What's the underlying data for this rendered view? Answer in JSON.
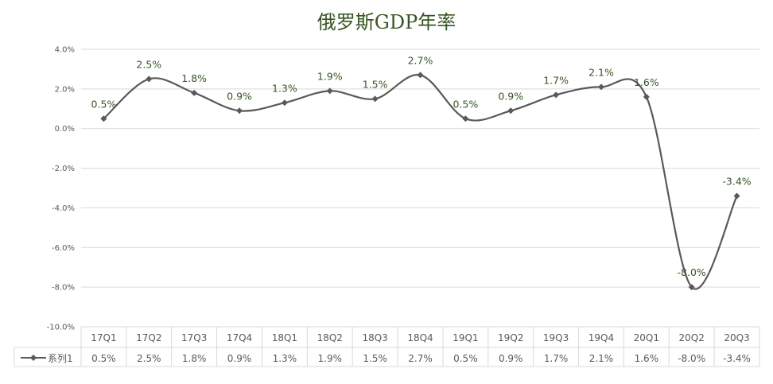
{
  "chart_data": {
    "type": "line",
    "title": "俄罗斯GDP年率",
    "categories": [
      "17Q1",
      "17Q2",
      "17Q3",
      "17Q4",
      "18Q1",
      "18Q2",
      "18Q3",
      "18Q4",
      "19Q1",
      "19Q2",
      "19Q3",
      "19Q4",
      "20Q1",
      "20Q2",
      "20Q3"
    ],
    "series": [
      {
        "name": "系列1",
        "values": [
          0.5,
          2.5,
          1.8,
          0.9,
          1.3,
          1.9,
          1.5,
          2.7,
          0.5,
          0.9,
          1.7,
          2.1,
          1.6,
          -8.0,
          -3.4
        ],
        "labels": [
          "0.5%",
          "2.5%",
          "1.8%",
          "0.9%",
          "1.3%",
          "1.9%",
          "1.5%",
          "2.7%",
          "0.5%",
          "0.9%",
          "1.7%",
          "2.1%",
          "1.6%",
          "-8.0%",
          "-3.4%"
        ]
      }
    ],
    "ylim": [
      -10,
      4
    ],
    "yticks": [
      4,
      2,
      0,
      -2,
      -4,
      -6,
      -8,
      -10
    ],
    "ytick_labels": [
      "4.0%",
      "2.0%",
      "0.0%",
      "-2.0%",
      "-4.0%",
      "-6.0%",
      "-8.0%",
      "-10.0%"
    ],
    "smooth": true,
    "grid": true,
    "data_table": true,
    "colors": {
      "line": "#595959",
      "title": "#375623",
      "labels": "#375623",
      "grid": "#d9d9d9",
      "axis_text": "#595959"
    }
  }
}
